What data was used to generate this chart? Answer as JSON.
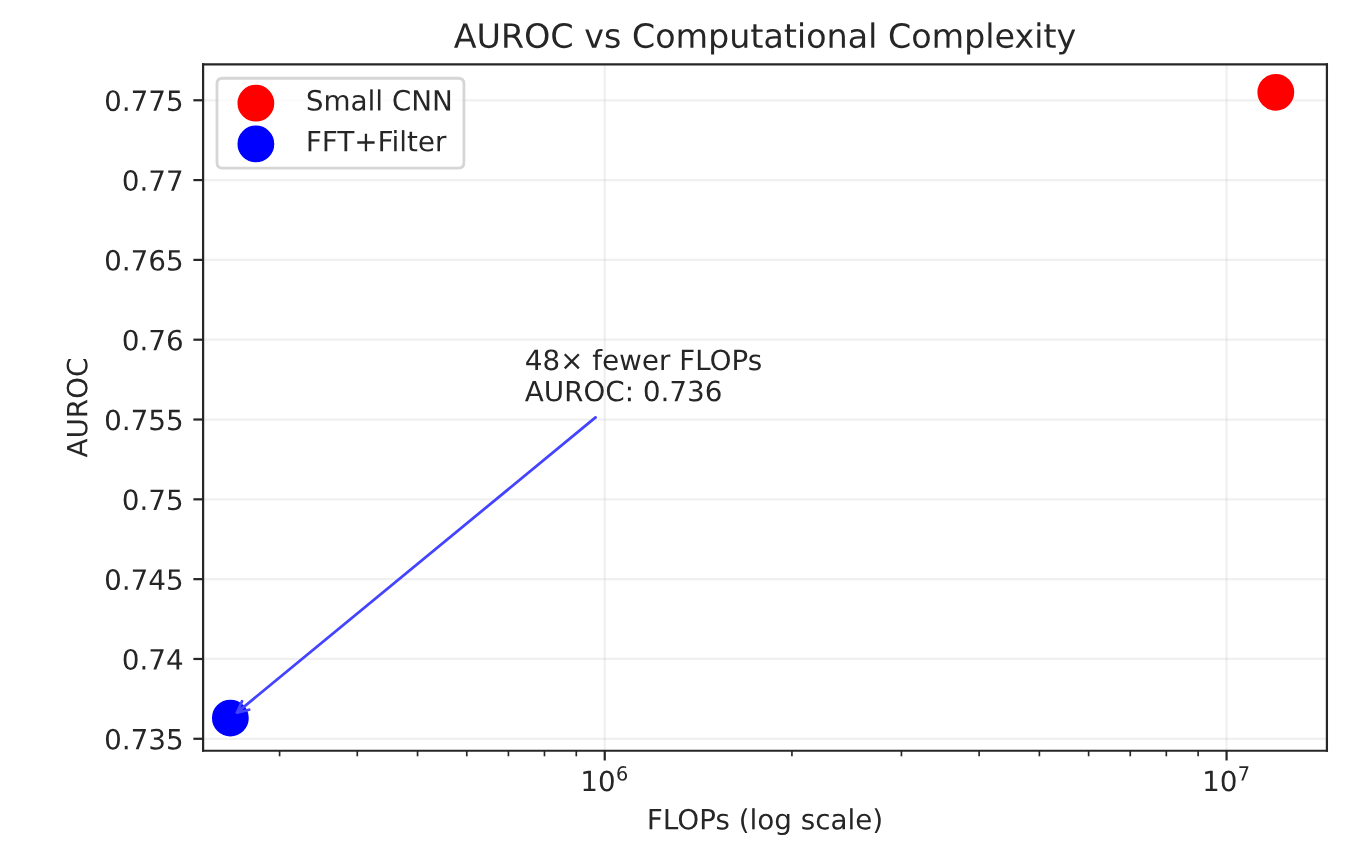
{
  "chart_data": {
    "type": "scatter",
    "title": "AUROC vs Computational Complexity",
    "xlabel": "FLOPs (log scale)",
    "ylabel": "AUROC",
    "series": [
      {
        "name": "Small CNN",
        "color": "#ff0000",
        "x": [
          12000000
        ],
        "values": [
          0.7755
        ]
      },
      {
        "name": "FFT+Filter",
        "color": "#0000ff",
        "x": [
          250000
        ],
        "values": [
          0.7363
        ]
      }
    ],
    "annotations": [
      {
        "text": "48× fewer FLOPs\nAUROC: 0.736",
        "x": 250000,
        "y": 0.7363
      }
    ],
    "log": "x",
    "xlim": [
      226000,
      14500000
    ],
    "xticks": [
      {
        "value": 1000000,
        "label": "10$^{6}$"
      },
      {
        "value": 10000000,
        "label": "10$^{7}$"
      }
    ],
    "ylim": [
      0.73425,
      0.77725
    ],
    "yticks": [
      0.735,
      0.74,
      0.745,
      0.75,
      0.755,
      0.76,
      0.765,
      0.77,
      0.775
    ],
    "grid": true,
    "legend": "top left",
    "marker": "circle"
  }
}
